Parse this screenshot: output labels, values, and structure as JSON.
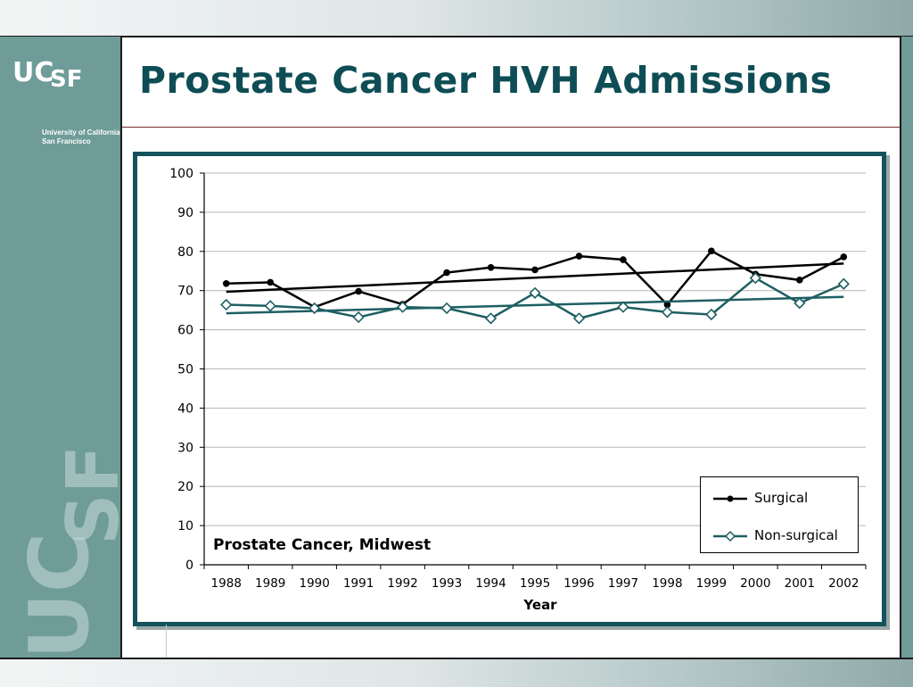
{
  "slide": {
    "title": "Prostate Cancer HVH Admissions"
  },
  "logo": {
    "letters_top": "UCSF",
    "university_line1": "University of California",
    "university_line2": "San Francisco",
    "watermark_text": "UCSF"
  },
  "colors": {
    "title": "#0e4d55",
    "sidebar": "#6f9c98",
    "frame": "#14525c",
    "surgical": "#000000",
    "non_surgical": "#1e5f63"
  },
  "chart_data": {
    "type": "line",
    "title": "Prostate Cancer, Midwest",
    "xlabel": "Year",
    "ylabel": "",
    "categories": [
      "1988",
      "1989",
      "1990",
      "1991",
      "1992",
      "1993",
      "1994",
      "1995",
      "1996",
      "1997",
      "1998",
      "1999",
      "2000",
      "2001",
      "2002"
    ],
    "ylim": [
      0,
      100
    ],
    "yticks": [
      0,
      10,
      20,
      30,
      40,
      50,
      60,
      70,
      80,
      90,
      100
    ],
    "grid": true,
    "legend_position": "bottom-right",
    "series": [
      {
        "name": "Surgical",
        "marker": "circle",
        "values": [
          71.8,
          72.1,
          65.8,
          69.8,
          66.5,
          74.6,
          75.9,
          75.3,
          78.8,
          77.9,
          66.4,
          80.1,
          74.2,
          72.7,
          78.6
        ],
        "trend": [
          69.7,
          76.9
        ]
      },
      {
        "name": "Non-surgical",
        "marker": "diamond",
        "values": [
          66.4,
          66.1,
          65.5,
          63.2,
          65.8,
          65.5,
          62.9,
          69.4,
          62.9,
          65.8,
          64.5,
          63.9,
          73.2,
          66.8,
          71.7
        ],
        "trend": [
          64.2,
          68.4
        ]
      }
    ]
  }
}
